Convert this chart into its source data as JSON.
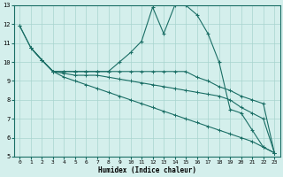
{
  "xlabel": "Humidex (Indice chaleur)",
  "bg_color": "#d4efec",
  "grid_color": "#a8d4cf",
  "line_color": "#1a6e65",
  "xlim": [
    -0.5,
    23.5
  ],
  "ylim": [
    5,
    13
  ],
  "xticks": [
    0,
    1,
    2,
    3,
    4,
    5,
    6,
    7,
    8,
    9,
    10,
    11,
    12,
    13,
    14,
    15,
    16,
    17,
    18,
    19,
    20,
    21,
    22,
    23
  ],
  "yticks": [
    5,
    6,
    7,
    8,
    9,
    10,
    11,
    12,
    13
  ],
  "line1_x": [
    0,
    1,
    2,
    3,
    4,
    5,
    6,
    7,
    8,
    9,
    10,
    11,
    12,
    13,
    14,
    15,
    16,
    17,
    18,
    19,
    20,
    21,
    22,
    23
  ],
  "line1_y": [
    11.9,
    10.75,
    10.1,
    9.5,
    9.5,
    9.5,
    9.5,
    9.5,
    9.5,
    10.0,
    10.5,
    11.1,
    12.9,
    11.5,
    13.0,
    13.0,
    12.5,
    11.5,
    10.0,
    7.5,
    7.3,
    6.4,
    5.5,
    5.2
  ],
  "line2_x": [
    0,
    1,
    2,
    3,
    4,
    5,
    6,
    7,
    8,
    9,
    10,
    11,
    12,
    13,
    14,
    15,
    16,
    17,
    18,
    19,
    20,
    21,
    22,
    23
  ],
  "line2_y": [
    11.9,
    10.75,
    10.1,
    9.5,
    9.5,
    9.5,
    9.5,
    9.5,
    9.5,
    9.5,
    9.5,
    9.5,
    9.5,
    9.5,
    9.5,
    9.5,
    9.2,
    9.0,
    8.7,
    8.5,
    8.2,
    8.0,
    7.8,
    5.2
  ],
  "line3_x": [
    1,
    2,
    3,
    4,
    5,
    6,
    7,
    8,
    9,
    10,
    11,
    12,
    13,
    14,
    15,
    16,
    17,
    18,
    19,
    20,
    21,
    22,
    23
  ],
  "line3_y": [
    10.75,
    10.1,
    9.5,
    9.4,
    9.3,
    9.3,
    9.3,
    9.2,
    9.1,
    9.0,
    8.9,
    8.8,
    8.7,
    8.6,
    8.5,
    8.4,
    8.3,
    8.2,
    8.0,
    7.6,
    7.3,
    7.0,
    5.2
  ],
  "line4_x": [
    1,
    2,
    3,
    4,
    5,
    6,
    7,
    8,
    9,
    10,
    11,
    12,
    13,
    14,
    15,
    16,
    17,
    18,
    19,
    20,
    21,
    22,
    23
  ],
  "line4_y": [
    10.75,
    10.1,
    9.5,
    9.2,
    9.0,
    8.8,
    8.6,
    8.4,
    8.2,
    8.0,
    7.8,
    7.6,
    7.4,
    7.2,
    7.0,
    6.8,
    6.6,
    6.4,
    6.2,
    6.0,
    5.8,
    5.5,
    5.2
  ]
}
